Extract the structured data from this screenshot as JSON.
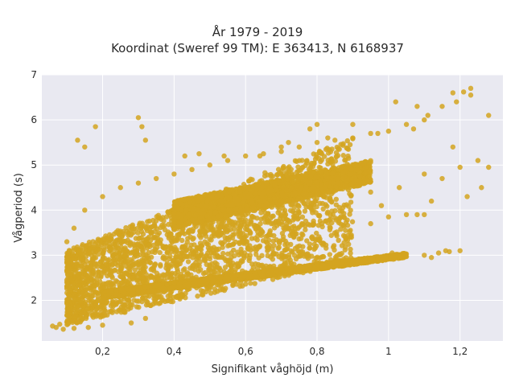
{
  "chart_data": {
    "type": "scatter",
    "title": "År 1979 - 2019",
    "subtitle": "Koordinat (Sweref 99 TM): E 363413, N 6168937",
    "xlabel": "Signifikant våghöjd (m)",
    "ylabel": "Vågperiod (s)",
    "xlim": [
      0.03,
      1.32
    ],
    "ylim": [
      1.1,
      7.0
    ],
    "xticks": [
      0.2,
      0.4,
      0.6,
      0.8,
      1,
      1.2
    ],
    "xtick_labels": [
      "0,2",
      "0,4",
      "0,6",
      "0,8",
      "1",
      "1,2"
    ],
    "yticks": [
      2,
      3,
      4,
      5,
      6,
      7
    ],
    "ytick_labels": [
      "2",
      "3",
      "4",
      "5",
      "6",
      "7"
    ],
    "grid": true,
    "marker_color": "#D4A520",
    "background_color": "#E9E9F1",
    "points": [
      [
        0.06,
        1.43
      ],
      [
        0.07,
        1.4
      ],
      [
        0.08,
        1.47
      ],
      [
        0.1,
        1.52
      ],
      [
        0.12,
        1.6
      ],
      [
        0.14,
        1.7
      ],
      [
        0.16,
        1.82
      ],
      [
        0.18,
        1.9
      ],
      [
        0.2,
        1.98
      ],
      [
        0.25,
        2.1
      ],
      [
        0.3,
        2.22
      ],
      [
        0.35,
        2.33
      ],
      [
        0.4,
        2.4
      ],
      [
        0.45,
        2.47
      ],
      [
        0.5,
        2.52
      ],
      [
        0.55,
        2.57
      ],
      [
        0.6,
        2.62
      ],
      [
        0.65,
        2.67
      ],
      [
        0.7,
        2.72
      ],
      [
        0.75,
        2.76
      ],
      [
        0.8,
        2.8
      ],
      [
        0.85,
        2.84
      ],
      [
        0.9,
        2.87
      ],
      [
        0.95,
        2.9
      ],
      [
        1.0,
        2.93
      ],
      [
        1.05,
        2.97
      ],
      [
        1.1,
        3.0
      ],
      [
        1.14,
        3.05
      ],
      [
        1.17,
        3.08
      ],
      [
        1.2,
        3.1
      ],
      [
        0.1,
        3.3
      ],
      [
        0.12,
        3.6
      ],
      [
        0.15,
        4.0
      ],
      [
        0.2,
        4.3
      ],
      [
        0.25,
        4.5
      ],
      [
        0.3,
        4.6
      ],
      [
        0.35,
        4.7
      ],
      [
        0.4,
        4.8
      ],
      [
        0.45,
        4.9
      ],
      [
        0.5,
        5.0
      ],
      [
        0.55,
        5.1
      ],
      [
        0.6,
        5.2
      ],
      [
        0.65,
        5.25
      ],
      [
        0.7,
        5.3
      ],
      [
        0.75,
        5.4
      ],
      [
        0.8,
        5.5
      ],
      [
        0.85,
        5.55
      ],
      [
        0.9,
        5.6
      ],
      [
        0.95,
        5.7
      ],
      [
        1.0,
        5.75
      ],
      [
        1.05,
        5.9
      ],
      [
        1.1,
        6.0
      ],
      [
        1.15,
        6.3
      ],
      [
        1.19,
        6.4
      ],
      [
        1.21,
        6.62
      ],
      [
        1.23,
        6.7
      ],
      [
        0.3,
        6.05
      ],
      [
        0.18,
        5.85
      ],
      [
        0.13,
        5.55
      ],
      [
        0.15,
        5.4
      ],
      [
        0.31,
        5.85
      ],
      [
        0.32,
        5.55
      ],
      [
        0.43,
        5.2
      ],
      [
        0.47,
        5.25
      ],
      [
        0.54,
        5.2
      ],
      [
        0.64,
        5.2
      ],
      [
        0.7,
        5.4
      ],
      [
        0.72,
        5.5
      ],
      [
        0.78,
        5.8
      ],
      [
        0.8,
        5.9
      ],
      [
        0.83,
        5.6
      ],
      [
        0.9,
        5.9
      ],
      [
        0.97,
        5.7
      ],
      [
        1.02,
        6.4
      ],
      [
        1.07,
        5.8
      ],
      [
        1.08,
        6.3
      ],
      [
        1.11,
        6.1
      ],
      [
        1.18,
        6.6
      ],
      [
        1.23,
        6.55
      ],
      [
        1.25,
        5.1
      ],
      [
        1.26,
        4.5
      ],
      [
        1.28,
        6.1
      ],
      [
        1.28,
        4.95
      ],
      [
        1.22,
        4.3
      ],
      [
        1.2,
        4.95
      ],
      [
        1.18,
        5.4
      ],
      [
        1.15,
        4.7
      ],
      [
        1.12,
        4.2
      ],
      [
        1.1,
        4.8
      ],
      [
        1.08,
        3.9
      ],
      [
        1.05,
        3.9
      ],
      [
        1.03,
        4.5
      ],
      [
        0.98,
        4.1
      ],
      [
        0.95,
        4.4
      ],
      [
        0.92,
        4.75
      ],
      [
        0.88,
        4.9
      ],
      [
        0.86,
        4.6
      ],
      [
        0.82,
        4.3
      ],
      [
        0.79,
        4.85
      ],
      [
        0.76,
        4.95
      ],
      [
        0.95,
        3.7
      ],
      [
        1.0,
        3.85
      ],
      [
        1.1,
        3.9
      ],
      [
        0.68,
        2.7
      ],
      [
        0.73,
        2.75
      ],
      [
        0.86,
        2.85
      ],
      [
        0.97,
        2.9
      ],
      [
        1.01,
        3.05
      ],
      [
        1.12,
        2.95
      ],
      [
        1.16,
        3.1
      ],
      [
        0.32,
        1.6
      ],
      [
        0.28,
        1.5
      ],
      [
        0.2,
        1.45
      ],
      [
        0.16,
        1.4
      ],
      [
        0.12,
        1.38
      ],
      [
        0.09,
        1.36
      ],
      [
        0.11,
        1.9
      ],
      [
        0.1,
        2.4
      ],
      [
        0.1,
        2.9
      ]
    ],
    "dense_bands": [
      {
        "x_from": 0.1,
        "x_to": 0.9,
        "y_low_from": 1.45,
        "y_low_to": 2.85,
        "y_high_from": 3.1,
        "y_high_to": 5.6
      },
      {
        "x_from": 0.2,
        "x_to": 1.05,
        "y_low_from": 2.05,
        "y_low_to": 2.95,
        "y_high_from": 2.2,
        "y_high_to": 3.05
      },
      {
        "x_from": 0.4,
        "x_to": 0.95,
        "y_low_from": 3.6,
        "y_low_to": 4.6,
        "y_high_from": 4.2,
        "y_high_to": 5.1
      }
    ]
  }
}
